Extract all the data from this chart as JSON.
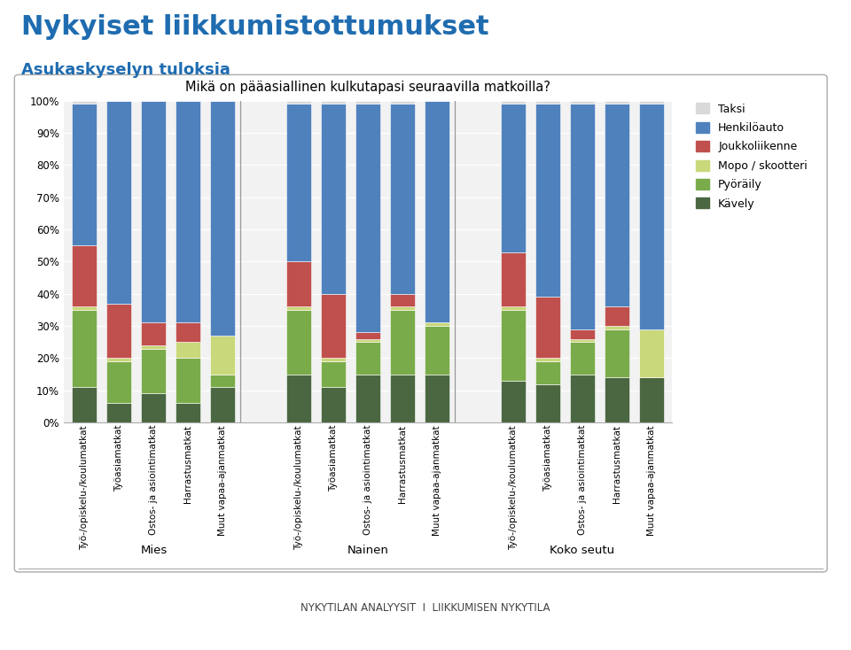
{
  "main_title": "Nykyiset liikkumistottumukset",
  "sub_title": "Asukaskyselyn tuloksia",
  "chart_title": "Mikä on pääasiallinen kulkutapasi seuraavilla matkoilla?",
  "groups": [
    "Mies",
    "Nainen",
    "Koko seutu"
  ],
  "group_labels": [
    "Työ-/opiskelu-/koulumatkat",
    "Työasiamatkat",
    "Ostos- ja asiointimatkat",
    "Harrastusmatkat",
    "Muut vapaa-ajanmatkat"
  ],
  "series_labels": [
    "Taksi",
    "Henkilöauto",
    "Joukkoliikenne",
    "Mopo / skootteri",
    "Pyöräily",
    "Kävely"
  ],
  "series_colors": [
    "#d9d9d9",
    "#4f81bd",
    "#c0504d",
    "#c9d87a",
    "#7aab4a",
    "#4a6741"
  ],
  "group_data": {
    "Mies": {
      "Kävely": [
        11,
        6,
        9,
        6,
        11
      ],
      "Pyöräily": [
        24,
        13,
        14,
        14,
        4
      ],
      "Mopo / skootteri": [
        1,
        1,
        1,
        5,
        12
      ],
      "Joukkoliikenne": [
        19,
        17,
        7,
        6,
        0
      ],
      "Henkilöauto": [
        44,
        63,
        69,
        69,
        73
      ],
      "Taksi": [
        1,
        0,
        0,
        0,
        0
      ]
    },
    "Nainen": {
      "Kävely": [
        15,
        11,
        15,
        15,
        15
      ],
      "Pyöräily": [
        20,
        8,
        10,
        20,
        15
      ],
      "Mopo / skootteri": [
        1,
        1,
        1,
        1,
        1
      ],
      "Joukkoliikenne": [
        14,
        20,
        2,
        4,
        0
      ],
      "Henkilöauto": [
        49,
        59,
        71,
        59,
        69
      ],
      "Taksi": [
        1,
        1,
        1,
        1,
        0
      ]
    },
    "Koko seutu": {
      "Kävely": [
        13,
        12,
        15,
        14,
        14
      ],
      "Pyöräily": [
        22,
        7,
        10,
        15,
        0
      ],
      "Mopo / skootteri": [
        1,
        1,
        1,
        1,
        15
      ],
      "Joukkoliikenne": [
        17,
        19,
        3,
        6,
        0
      ],
      "Henkilöauto": [
        46,
        60,
        70,
        63,
        70
      ],
      "Taksi": [
        1,
        1,
        1,
        1,
        1
      ]
    }
  },
  "main_title_color": "#1f6cb0",
  "sub_title_color": "#1f6cb0",
  "chart_bg": "#f2f2f2",
  "outer_bg": "#ffffff",
  "box_color": "#c0c0c0",
  "footer_text": "NYKYTILAN ANALYYSIT  I  LIIKKUMISEN NYKYTILA"
}
